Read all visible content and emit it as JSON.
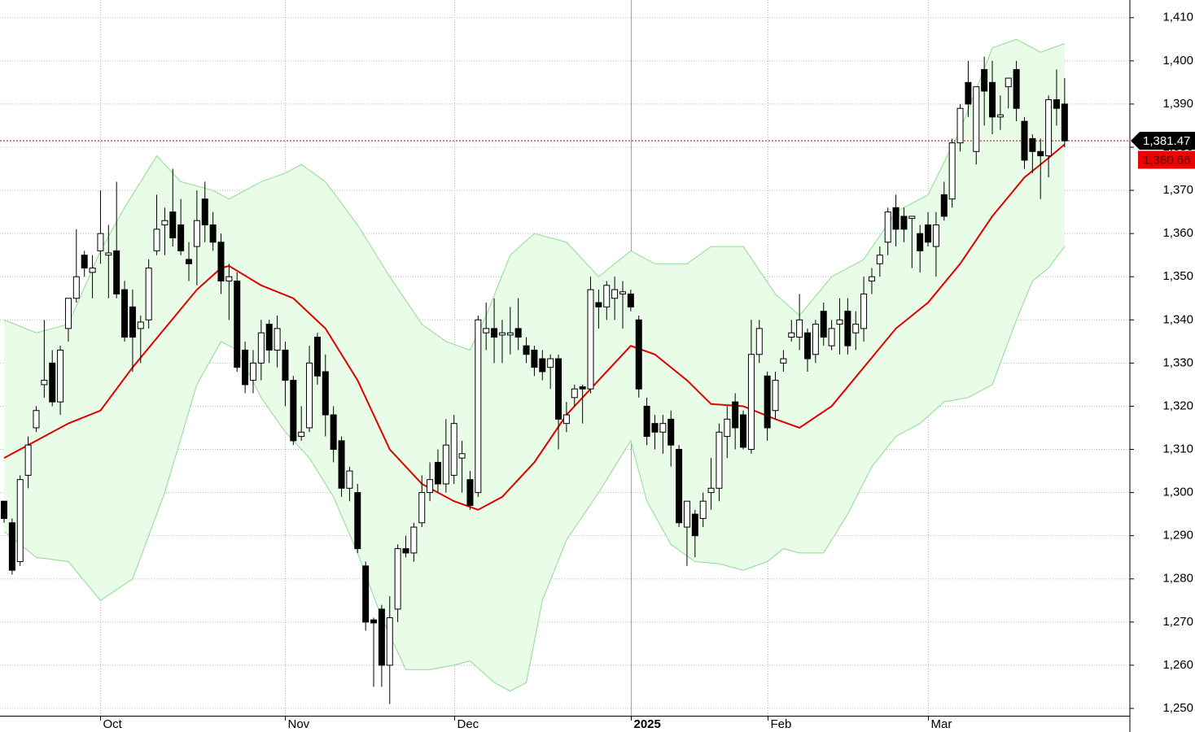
{
  "chart_data": {
    "type": "candlestick",
    "categories": [
      null,
      null,
      null,
      null,
      null,
      null,
      null,
      null,
      null,
      null,
      null,
      null,
      "Oct",
      null,
      null,
      null,
      null,
      null,
      null,
      null,
      null,
      null,
      null,
      null,
      null,
      null,
      null,
      null,
      null,
      null,
      null,
      null,
      null,
      null,
      null,
      "Nov",
      null,
      null,
      null,
      null,
      null,
      null,
      null,
      null,
      null,
      null,
      null,
      null,
      null,
      null,
      null,
      null,
      null,
      null,
      null,
      null,
      "Dec",
      null,
      null,
      null,
      null,
      null,
      null,
      null,
      null,
      null,
      null,
      null,
      null,
      null,
      null,
      null,
      null,
      null,
      null,
      null,
      null,
      null,
      "2025",
      null,
      null,
      null,
      null,
      null,
      null,
      null,
      null,
      null,
      null,
      null,
      null,
      null,
      null,
      null,
      null,
      "Feb",
      null,
      null,
      null,
      null,
      null,
      null,
      null,
      null,
      null,
      null,
      null,
      null,
      null,
      null,
      null,
      null,
      null,
      null,
      null,
      "Mar",
      null,
      null,
      null,
      null,
      null,
      null,
      null,
      null,
      null,
      null,
      null,
      null,
      null,
      null,
      null,
      null,
      null
    ],
    "open": [
      1298,
      1293,
      1284,
      1304,
      1315,
      1325,
      1330,
      1321,
      1338,
      1345,
      1355,
      1351,
      1356,
      1355,
      1356,
      1347,
      1343,
      1338,
      1340,
      1356,
      1362,
      1365,
      1362,
      1354,
      1357,
      1368,
      1362,
      1358,
      1349,
      1349,
      1333,
      1326,
      1330,
      1339,
      1333,
      1333,
      1326,
      1313,
      1315,
      1336,
      1328,
      1318,
      1312,
      1301,
      1300,
      1283,
      1270.5,
      1273,
      1260,
      1273,
      1287,
      1286,
      1293,
      1300,
      1307,
      1302,
      1304,
      1308,
      1303,
      1300,
      1337,
      1338,
      1336.5,
      1336.5,
      1338,
      1334,
      1333,
      1331,
      1329,
      1331,
      1316,
      1322,
      1324.5,
      1324,
      1344,
      1343,
      1345,
      1346,
      1346,
      1340,
      1320,
      1316,
      1314,
      1317,
      1310,
      1292,
      1295,
      1294,
      1300,
      1301,
      1313,
      1321,
      1318,
      1310,
      1332,
      1327,
      1319,
      1330,
      1336,
      1336,
      1337,
      1332,
      1342,
      1334,
      1339,
      1342,
      1337,
      1338,
      1349,
      1353,
      1358,
      1366,
      1364,
      1363.5,
      1360,
      1362,
      1357,
      1369,
      1368,
      1381,
      1395,
      1379,
      1398,
      1395,
      1387,
      1394,
      1398,
      1386,
      1382,
      1379,
      1378,
      1391,
      1390
    ],
    "high": [
      1298,
      1294,
      1304,
      1313,
      1320,
      1340,
      1333,
      1334,
      1345,
      1361,
      1356,
      1355,
      1370,
      1362,
      1372,
      1349,
      1347,
      1341,
      1354,
      1369,
      1366,
      1375,
      1368,
      1358,
      1370,
      1372,
      1365,
      1360,
      1353,
      1351,
      1335,
      1333,
      1340,
      1340,
      1341,
      1335,
      1327,
      1320,
      1334,
      1337,
      1332,
      1320,
      1313,
      1306,
      1302,
      1284,
      1271,
      1274,
      1276,
      1288,
      1290,
      1293,
      1304,
      1307,
      1310,
      1317,
      1318,
      1312,
      1305,
      1341,
      1344,
      1345,
      1340,
      1343,
      1345,
      1336,
      1334,
      1333,
      1332,
      1332,
      1321,
      1325,
      1325,
      1350,
      1347,
      1349,
      1350,
      1349,
      1347,
      1341,
      1322,
      1318,
      1318,
      1319,
      1311,
      1298,
      1296,
      1300,
      1308,
      1316,
      1320,
      1323,
      1319,
      1340,
      1340,
      1328,
      1328,
      1333,
      1340,
      1346,
      1338,
      1340,
      1344,
      1340,
      1345,
      1345,
      1342,
      1350,
      1352,
      1357,
      1366,
      1369,
      1366,
      1364,
      1362,
      1365,
      1365,
      1372,
      1382,
      1390,
      1400,
      1394,
      1401,
      1400,
      1392,
      1396,
      1400,
      1387,
      1383,
      1382,
      1392,
      1398,
      1396
    ],
    "low": [
      1293,
      1281,
      1283,
      1301,
      1314,
      1322,
      1320,
      1318,
      1335,
      1344,
      1350,
      1345,
      1353,
      1345,
      1345,
      1335,
      1328,
      1330,
      1338,
      1355,
      1355,
      1357,
      1355,
      1349,
      1348,
      1358,
      1356,
      1346,
      1340,
      1328,
      1323,
      1323,
      1326,
      1330,
      1329,
      1320,
      1311,
      1312,
      1314,
      1325,
      1313,
      1307,
      1299,
      1298,
      1286,
      1268,
      1255,
      1255,
      1251,
      1270,
      1285,
      1284,
      1292,
      1298,
      1300,
      1300,
      1302,
      1300,
      1296,
      1299,
      1333,
      1330,
      1330,
      1332,
      1333,
      1330,
      1327,
      1326,
      1324,
      1310,
      1314,
      1320,
      1316,
      1323,
      1338,
      1340,
      1340,
      1338,
      1342,
      1322,
      1311,
      1310,
      1309,
      1306,
      1292,
      1283,
      1285,
      1292,
      1296,
      1298,
      1308,
      1310,
      1310,
      1309,
      1330,
      1312,
      1317,
      1328,
      1335,
      1333,
      1328,
      1330,
      1334,
      1333,
      1332,
      1332,
      1333,
      1335,
      1346,
      1350,
      1355,
      1357,
      1358,
      1352,
      1351,
      1357,
      1350,
      1363,
      1366,
      1379,
      1387,
      1376,
      1385,
      1383,
      1384,
      1389,
      1386,
      1375,
      1374,
      1368,
      1373,
      1385,
      1380
    ],
    "close": [
      1294,
      1282,
      1303,
      1311,
      1319,
      1326,
      1321,
      1333,
      1345,
      1350,
      1352,
      1352,
      1360,
      1355.5,
      1346,
      1336,
      1336,
      1339.5,
      1352,
      1361,
      1363,
      1359,
      1356,
      1353,
      1363,
      1362,
      1358,
      1349,
      1350,
      1329,
      1325,
      1330,
      1337,
      1333,
      1338,
      1326,
      1312,
      1314,
      1330,
      1327,
      1318,
      1310,
      1301,
      1305,
      1287,
      1270,
      1269.8,
      1260,
      1271,
      1287,
      1286,
      1292,
      1300,
      1303,
      1302,
      1311,
      1316,
      1309,
      1297,
      1340,
      1338,
      1336,
      1337,
      1337,
      1336,
      1332,
      1329,
      1328,
      1331,
      1317,
      1318,
      1324,
      1324,
      1347,
      1343,
      1348,
      1347,
      1346.5,
      1343,
      1324,
      1313,
      1314,
      1316,
      1311,
      1293,
      1298,
      1290,
      1298,
      1301,
      1314,
      1317,
      1315,
      1310.5,
      1332,
      1338,
      1315,
      1326,
      1331,
      1337,
      1340,
      1331,
      1339,
      1336,
      1338,
      1340,
      1334,
      1339,
      1346,
      1350,
      1355,
      1365,
      1361,
      1361,
      1364,
      1356,
      1358,
      1362,
      1364,
      1381,
      1389,
      1390,
      1394,
      1393,
      1387,
      1387.5,
      1396,
      1389,
      1377,
      1379,
      1378,
      1391,
      1389,
      1381.47
    ],
    "series": [
      {
        "color": "#e00000",
        "x": [
          0,
          4,
          8,
          12,
          16,
          20,
          24,
          27,
          28,
          32,
          36,
          40,
          44,
          48,
          52,
          56,
          59,
          62,
          66,
          70,
          74,
          78,
          81,
          85,
          88,
          92,
          96,
          99,
          103,
          107,
          111,
          115,
          119,
          123,
          127,
          130,
          132
        ],
        "values": [
          1308,
          1312,
          1316,
          1319,
          1329,
          1338,
          1347,
          1352,
          1352.5,
          1348,
          1345,
          1338,
          1326,
          1310,
          1302,
          1298,
          1296,
          1299,
          1307,
          1318,
          1326,
          1334,
          1332,
          1326,
          1320.5,
          1320,
          1317,
          1315,
          1320,
          1329,
          1338,
          1344,
          1353,
          1364,
          1373,
          1377.5,
          1380.66
        ]
      },
      {
        "color": "#8fdc8f",
        "x": [
          0,
          4,
          8,
          12,
          15,
          19,
          22,
          26,
          28,
          32,
          35,
          37,
          40,
          44,
          48,
          52,
          55,
          58,
          60,
          63,
          66,
          70,
          74,
          78,
          81,
          85,
          88,
          92,
          96,
          99,
          103,
          107,
          111,
          115,
          119,
          123,
          126,
          129,
          132
        ],
        "values": [
          1340,
          1337,
          1339,
          1356,
          1366,
          1378,
          1372,
          1370,
          1368,
          1372,
          1374,
          1376,
          1372,
          1362,
          1350,
          1339,
          1335,
          1333,
          1341,
          1355,
          1360,
          1358,
          1350,
          1356,
          1353,
          1353,
          1357,
          1357,
          1346,
          1341,
          1350,
          1354,
          1365,
          1369,
          1384,
          1403,
          1405,
          1402,
          1404
        ]
      },
      {
        "color": "#8fdc8f",
        "x": [
          0,
          4,
          8,
          12,
          16,
          20,
          24,
          27,
          29,
          32,
          35,
          38,
          41,
          44,
          47,
          50,
          53,
          56,
          58,
          61,
          63,
          65,
          67,
          70,
          74,
          78,
          80,
          83,
          86,
          89,
          92,
          95,
          97,
          99,
          102,
          105,
          108,
          111,
          114,
          117,
          120,
          123,
          126,
          128,
          130,
          132
        ],
        "values": [
          1291,
          1285,
          1284,
          1275,
          1280,
          1300,
          1325,
          1335,
          1333,
          1322,
          1314,
          1308,
          1299,
          1286,
          1271,
          1259,
          1259,
          1260,
          1261,
          1256,
          1254,
          1256,
          1275,
          1289,
          1300,
          1312,
          1298,
          1288,
          1284,
          1283.5,
          1282,
          1284,
          1287,
          1286,
          1286,
          1295,
          1306,
          1313,
          1316,
          1321,
          1322,
          1325,
          1340,
          1349,
          1352,
          1357
        ]
      }
    ],
    "band_fill": "#e8fce8",
    "ylim": [
      1248.3,
      1414.1
    ],
    "yticks": [
      {
        "value": 1250,
        "label": "1,250"
      },
      {
        "value": 1260,
        "label": "1,260"
      },
      {
        "value": 1270,
        "label": "1,270"
      },
      {
        "value": 1280,
        "label": "1,280"
      },
      {
        "value": 1290,
        "label": "1,290"
      },
      {
        "value": 1300,
        "label": "1,300"
      },
      {
        "value": 1310,
        "label": "1,310"
      },
      {
        "value": 1320,
        "label": "1,320"
      },
      {
        "value": 1330,
        "label": "1,330"
      },
      {
        "value": 1340,
        "label": "1,340"
      },
      {
        "value": 1350,
        "label": "1,350"
      },
      {
        "value": 1360,
        "label": "1,360"
      },
      {
        "value": 1370,
        "label": "1,370"
      },
      {
        "value": 1380,
        "label": "1,380"
      },
      {
        "value": 1390,
        "label": "1,390"
      },
      {
        "value": 1400,
        "label": "1,400"
      },
      {
        "value": 1410,
        "label": "1,410"
      }
    ],
    "grid": true,
    "markers": [
      {
        "value": 1381.47,
        "label": "1,381.47",
        "color": "#000000",
        "text_color": "#ffffff"
      },
      {
        "value": 1380.66,
        "label": "1,380.66",
        "color": "#ee0000",
        "text_color": "#5a0000"
      }
    ]
  }
}
